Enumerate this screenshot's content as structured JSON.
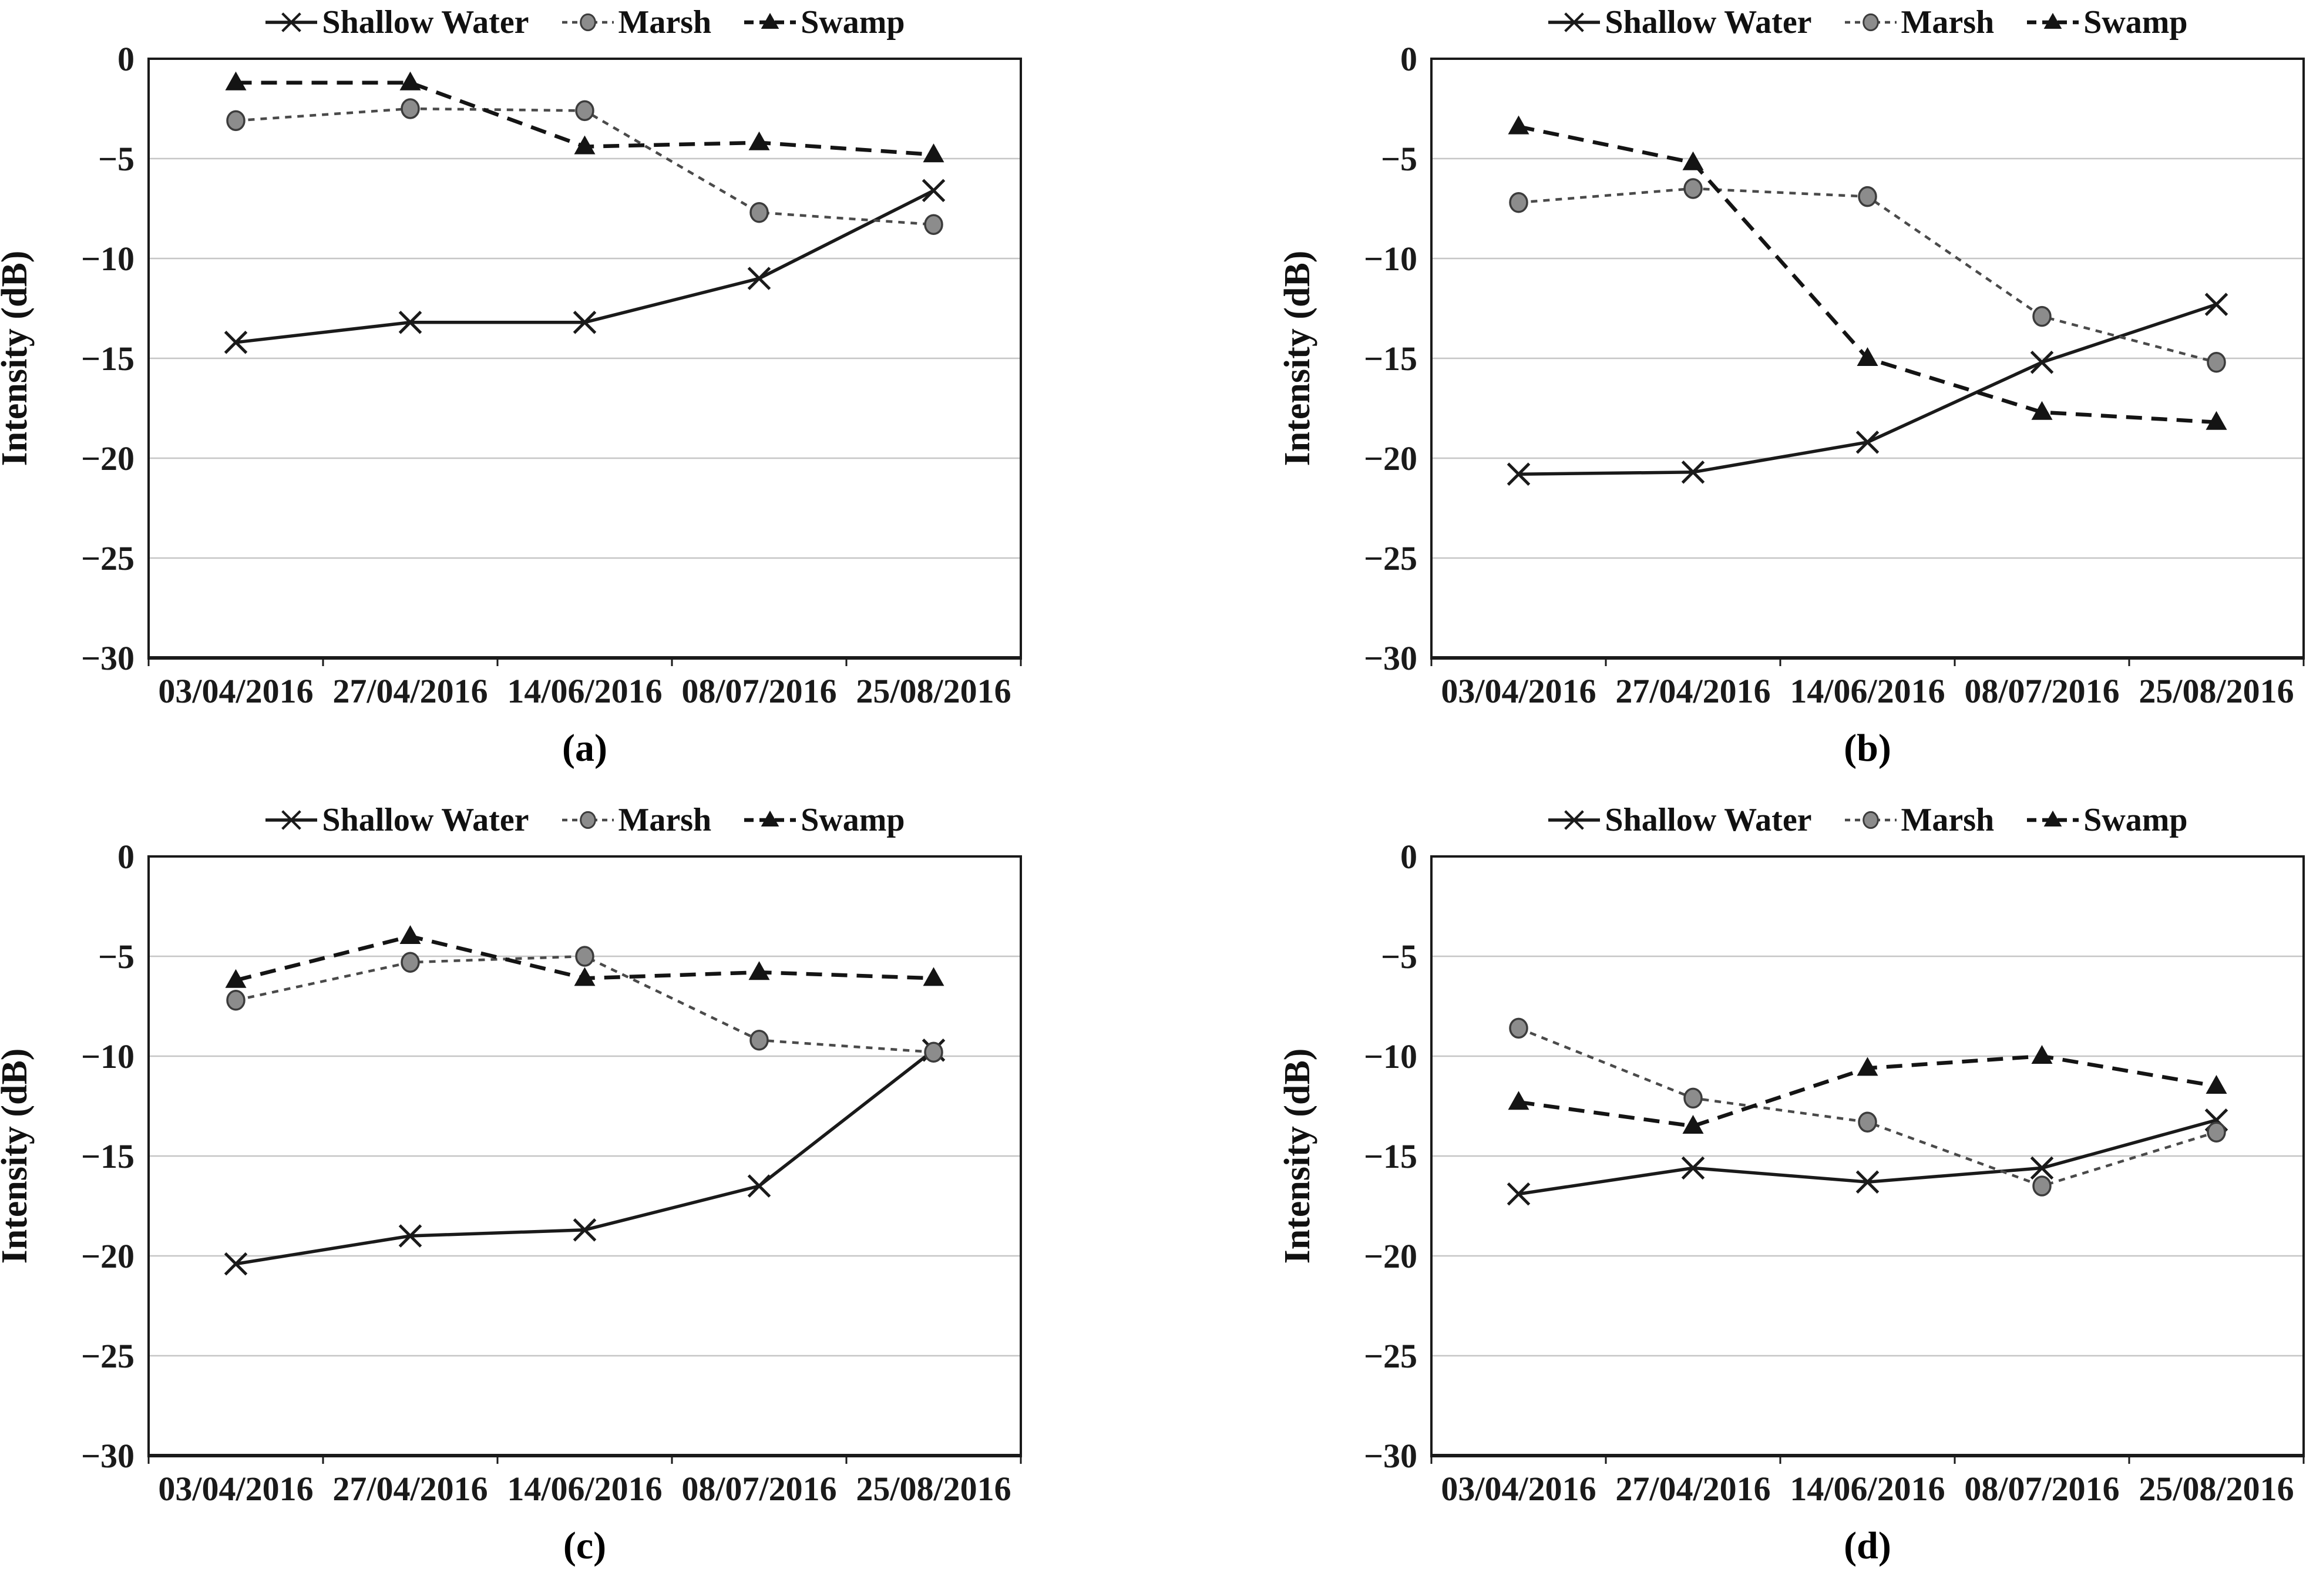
{
  "figure": {
    "background": "#ffffff",
    "text_color": "#1a1a1a",
    "grid_color": "#c6c6c6",
    "axis_color": "#1a1a1a"
  },
  "chart_data": [
    {
      "type": "line",
      "caption": "(a)",
      "ylabel": "Intensity (dB)",
      "ylim": [
        -30,
        0
      ],
      "yticks": [
        0,
        -5,
        -10,
        -15,
        -20,
        -25,
        -30
      ],
      "ytick_labels": [
        "0",
        "−5",
        "−10",
        "−15",
        "−20",
        "−25",
        "−30"
      ],
      "grid": "horizontal",
      "legend_position": "top",
      "categories": [
        "03/04/2016",
        "27/04/2016",
        "14/06/2016",
        "08/07/2016",
        "25/08/2016"
      ],
      "series": [
        {
          "name": "Shallow Water",
          "marker": "x",
          "line": "solid",
          "color": "#1a1a1a",
          "values": [
            -14.2,
            -13.2,
            -13.2,
            -11.0,
            -6.6
          ]
        },
        {
          "name": "Marsh",
          "marker": "circle",
          "line": "dotted",
          "color": "#4a4a4a",
          "marker_fill": "#8c8c8c",
          "marker_stroke": "#3c3c3c",
          "values": [
            -3.1,
            -2.5,
            -2.6,
            -7.7,
            -8.3
          ]
        },
        {
          "name": "Swamp",
          "marker": "triangle",
          "line": "dashed",
          "color": "#141414",
          "values": [
            -1.2,
            -1.2,
            -4.4,
            -4.2,
            -4.8
          ]
        }
      ]
    },
    {
      "type": "line",
      "caption": "(b)",
      "ylabel": "Intensity (dB)",
      "ylim": [
        -30,
        0
      ],
      "yticks": [
        0,
        -5,
        -10,
        -15,
        -20,
        -25,
        -30
      ],
      "ytick_labels": [
        "0",
        "−5",
        "−10",
        "−15",
        "−20",
        "−25",
        "−30"
      ],
      "grid": "horizontal",
      "legend_position": "top",
      "categories": [
        "03/04/2016",
        "27/04/2016",
        "14/06/2016",
        "08/07/2016",
        "25/08/2016"
      ],
      "series": [
        {
          "name": "Shallow Water",
          "marker": "x",
          "line": "solid",
          "color": "#1a1a1a",
          "values": [
            -20.8,
            -20.7,
            -19.2,
            -15.2,
            -12.3
          ]
        },
        {
          "name": "Marsh",
          "marker": "circle",
          "line": "dotted",
          "color": "#4a4a4a",
          "marker_fill": "#8c8c8c",
          "marker_stroke": "#3c3c3c",
          "values": [
            -7.2,
            -6.5,
            -6.9,
            -12.9,
            -15.2
          ]
        },
        {
          "name": "Swamp",
          "marker": "triangle",
          "line": "dashed",
          "color": "#141414",
          "values": [
            -3.4,
            -5.2,
            -15.0,
            -17.7,
            -18.2
          ]
        }
      ]
    },
    {
      "type": "line",
      "caption": "(c)",
      "ylabel": "Intensity (dB)",
      "ylim": [
        -30,
        0
      ],
      "yticks": [
        0,
        -5,
        -10,
        -15,
        -20,
        -25,
        -30
      ],
      "ytick_labels": [
        "0",
        "−5",
        "−10",
        "−15",
        "−20",
        "−25",
        "−30"
      ],
      "grid": "horizontal",
      "legend_position": "top",
      "categories": [
        "03/04/2016",
        "27/04/2016",
        "14/06/2016",
        "08/07/2016",
        "25/08/2016"
      ],
      "series": [
        {
          "name": "Shallow Water",
          "marker": "x",
          "line": "solid",
          "color": "#1a1a1a",
          "values": [
            -20.4,
            -19.0,
            -18.7,
            -16.5,
            -9.7
          ]
        },
        {
          "name": "Marsh",
          "marker": "circle",
          "line": "dotted",
          "color": "#4a4a4a",
          "marker_fill": "#8c8c8c",
          "marker_stroke": "#3c3c3c",
          "values": [
            -7.2,
            -5.3,
            -5.0,
            -9.2,
            -9.8
          ]
        },
        {
          "name": "Swamp",
          "marker": "triangle",
          "line": "dashed",
          "color": "#141414",
          "values": [
            -6.2,
            -4.0,
            -6.1,
            -5.8,
            -6.1
          ]
        }
      ]
    },
    {
      "type": "line",
      "caption": "(d)",
      "ylabel": "Intensity (dB)",
      "ylim": [
        -30,
        0
      ],
      "yticks": [
        0,
        -5,
        -10,
        -15,
        -20,
        -25,
        -30
      ],
      "ytick_labels": [
        "0",
        "−5",
        "−10",
        "−15",
        "−20",
        "−25",
        "−30"
      ],
      "grid": "horizontal",
      "legend_position": "top",
      "categories": [
        "03/04/2016",
        "27/04/2016",
        "14/06/2016",
        "08/07/2016",
        "25/08/2016"
      ],
      "series": [
        {
          "name": "Shallow Water",
          "marker": "x",
          "line": "solid",
          "color": "#1a1a1a",
          "values": [
            -16.9,
            -15.6,
            -16.3,
            -15.6,
            -13.2
          ]
        },
        {
          "name": "Marsh",
          "marker": "circle",
          "line": "dotted",
          "color": "#4a4a4a",
          "marker_fill": "#8c8c8c",
          "marker_stroke": "#3c3c3c",
          "values": [
            -8.6,
            -12.1,
            -13.3,
            -16.5,
            -13.8
          ]
        },
        {
          "name": "Swamp",
          "marker": "triangle",
          "line": "dashed",
          "color": "#141414",
          "values": [
            -12.3,
            -13.5,
            -10.6,
            -10.0,
            -11.5
          ]
        }
      ]
    }
  ]
}
